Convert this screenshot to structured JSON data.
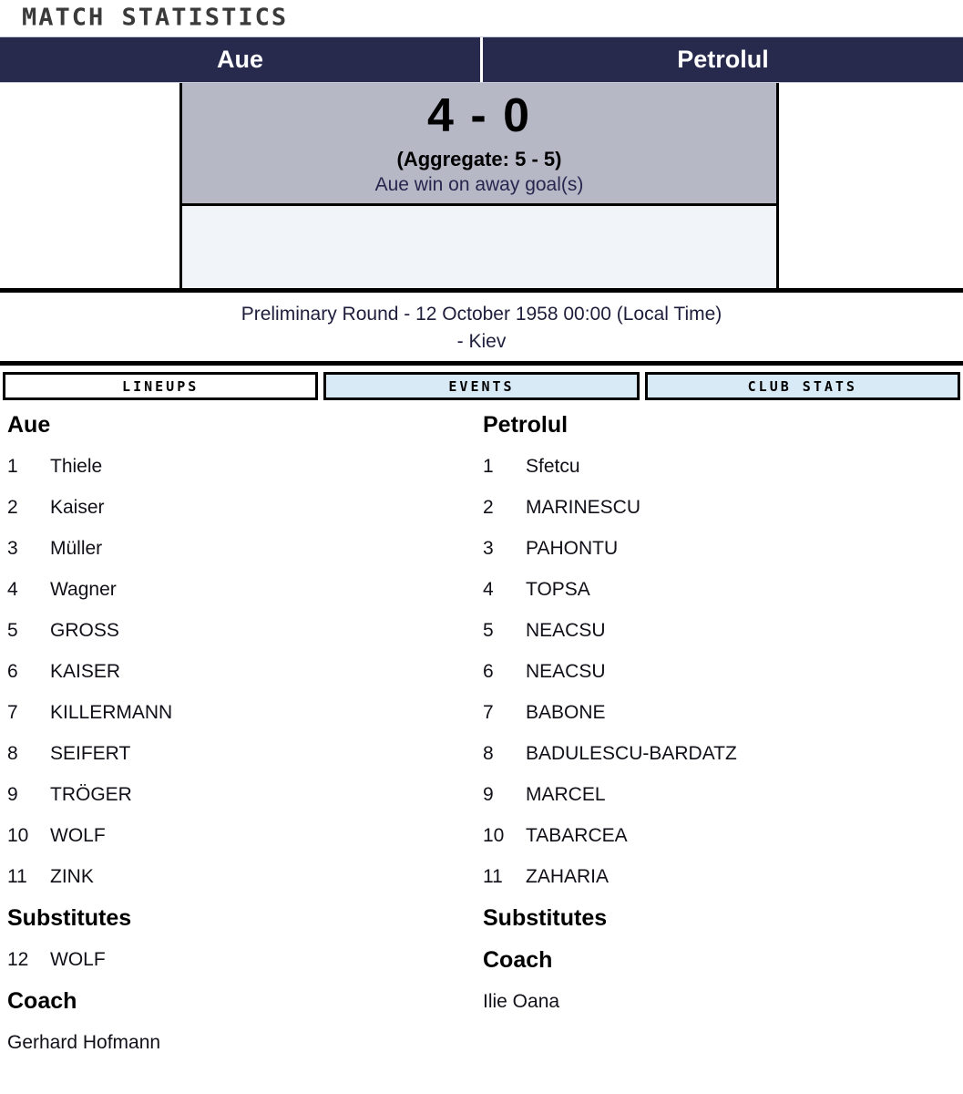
{
  "title": "MATCH STATISTICS",
  "header": {
    "home_team": "Aue",
    "away_team": "Petrolul"
  },
  "scoreboard": {
    "score": "4 - 0",
    "aggregate": "(Aggregate: 5 - 5)",
    "note": "Aue win on away goal(s)"
  },
  "match_info": {
    "line1": "Preliminary Round - 12 October 1958 00:00 (Local Time)",
    "line2": "- Kiev"
  },
  "tabs": [
    {
      "label": "LINEUPS",
      "active": true
    },
    {
      "label": "EVENTS",
      "active": false
    },
    {
      "label": "CLUB STATS",
      "active": false
    }
  ],
  "lineups": {
    "home": {
      "team": "Aue",
      "players": [
        {
          "no": "1",
          "name": "Thiele"
        },
        {
          "no": "2",
          "name": "Kaiser"
        },
        {
          "no": "3",
          "name": "Müller"
        },
        {
          "no": "4",
          "name": "Wagner"
        },
        {
          "no": "5",
          "name": "GROSS"
        },
        {
          "no": "6",
          "name": "KAISER"
        },
        {
          "no": "7",
          "name": "KILLERMANN"
        },
        {
          "no": "8",
          "name": "SEIFERT"
        },
        {
          "no": "9",
          "name": "TRÖGER"
        },
        {
          "no": "10",
          "name": "WOLF"
        },
        {
          "no": "11",
          "name": "ZINK"
        }
      ],
      "substitutes_label": "Substitutes",
      "substitutes": [
        {
          "no": "12",
          "name": "WOLF"
        }
      ],
      "coach_label": "Coach",
      "coach": "Gerhard Hofmann"
    },
    "away": {
      "team": "Petrolul",
      "players": [
        {
          "no": "1",
          "name": "Sfetcu"
        },
        {
          "no": "2",
          "name": "MARINESCU"
        },
        {
          "no": "3",
          "name": "PAHONTU"
        },
        {
          "no": "4",
          "name": "TOPSA"
        },
        {
          "no": "5",
          "name": "NEACSU"
        },
        {
          "no": "6",
          "name": "NEACSU"
        },
        {
          "no": "7",
          "name": "BABONE"
        },
        {
          "no": "8",
          "name": "BADULESCU-BARDATZ"
        },
        {
          "no": "9",
          "name": "MARCEL"
        },
        {
          "no": "10",
          "name": "TABARCEA"
        },
        {
          "no": "11",
          "name": "ZAHARIA"
        }
      ],
      "substitutes_label": "Substitutes",
      "substitutes": [],
      "coach_label": "Coach",
      "coach": "Ilie Oana"
    }
  },
  "colors": {
    "header_bg": "#272a4d",
    "header_text": "#ffffff",
    "score_box_bg": "#b6b8c6",
    "score_note_text": "#26264e",
    "empty_panel_bg": "#f1f5fa",
    "tab_active_bg": "#ffffff",
    "tab_inactive_bg": "#d9eaf7",
    "title_text": "#3a3a3a",
    "border": "#000000"
  }
}
